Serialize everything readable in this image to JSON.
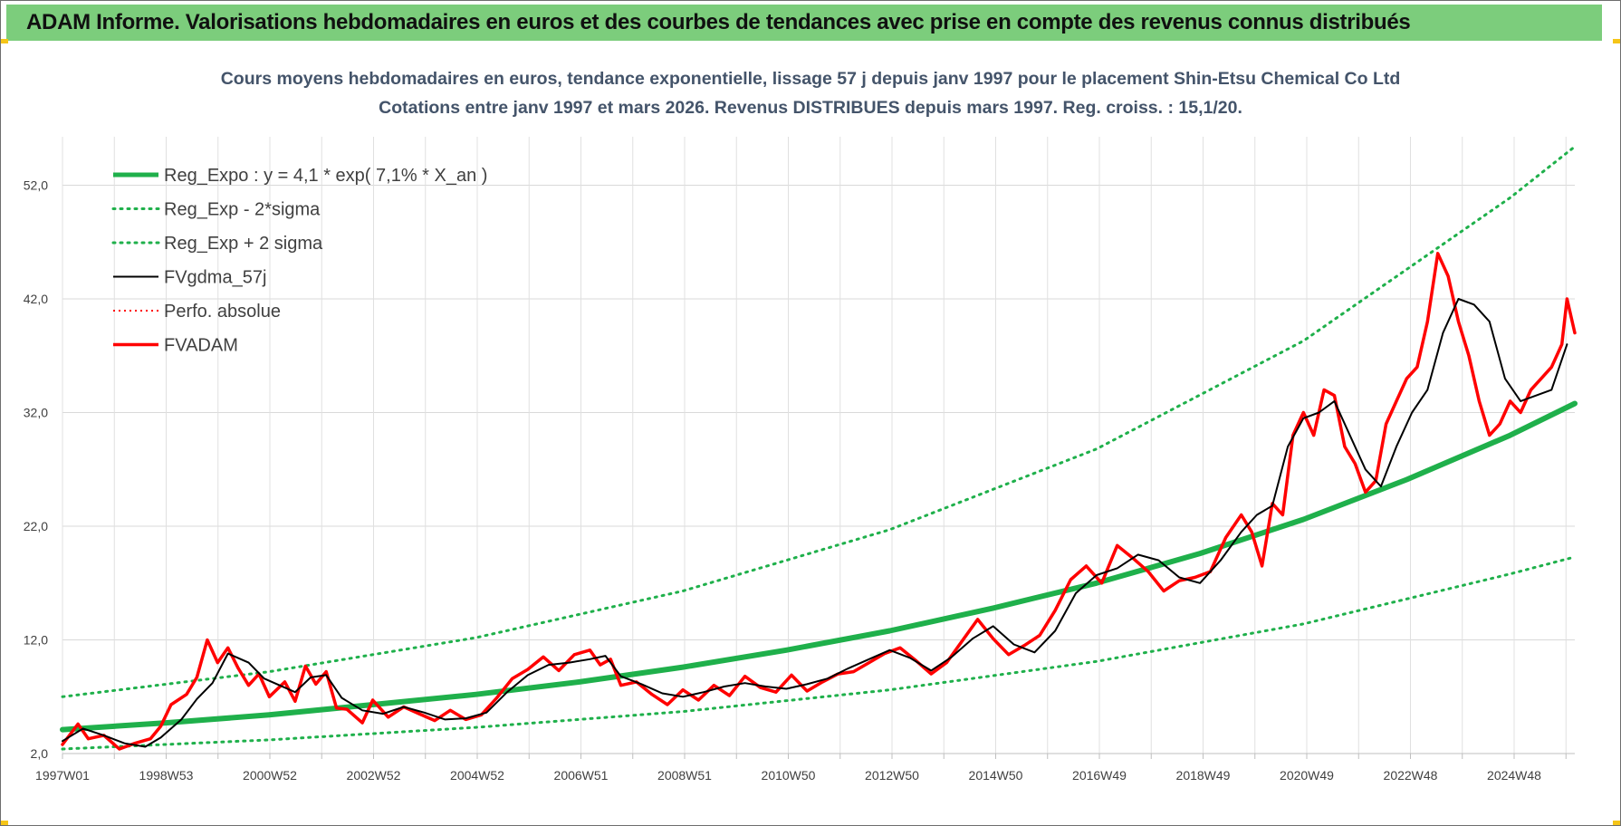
{
  "banner": {
    "title": "ADAM Informe. Valorisations hebdomadaires en euros et des courbes de tendances avec prise en compte des revenus connus distribués"
  },
  "colors": {
    "banner": "#7ccd7c",
    "trend_green": "#1fb04b",
    "fvadam_red": "#ff0000",
    "fvgdma_black": "#000000",
    "title_blue_gray": "#44546a"
  },
  "chart_data": {
    "type": "line",
    "title": "Cours moyens hebdomadaires en euros, tendance exponentielle, lissage 57 j depuis janv 1997 pour le placement Shin-Etsu Chemical Co Ltd",
    "subtitle": "Cotations entre janv 1997 et mars 2026. Revenus DISTRIBUES depuis mars 1997. Reg. croiss. : 15,1/20.",
    "xlabel": "",
    "ylabel": "",
    "x_tick_labels": [
      "1997W01",
      "1998W53",
      "2000W52",
      "2002W52",
      "2004W52",
      "2006W51",
      "2008W51",
      "2010W50",
      "2012W50",
      "2014W50",
      "2016W49",
      "2018W49",
      "2020W49",
      "2022W48",
      "2024W48"
    ],
    "y_tick_labels": [
      "2,0",
      "12,0",
      "22,0",
      "32,0",
      "42,0",
      "52,0"
    ],
    "ylim": [
      2,
      60
    ],
    "xlim": [
      1997.0,
      2026.25
    ],
    "grid": true,
    "legend_position": "top-left",
    "series": [
      {
        "name": "Reg_Expo : y = 4,1 * exp( 7,1% *  X_an )",
        "style": "solid-thick",
        "color": "#1fb04b",
        "x": [
          1997.0,
          1999.0,
          2001.0,
          2003.0,
          2005.0,
          2007.0,
          2009.0,
          2011.0,
          2013.0,
          2015.0,
          2017.0,
          2019.0,
          2021.0,
          2023.0,
          2025.0,
          2026.25
        ],
        "y": [
          4.1,
          4.7,
          5.4,
          6.3,
          7.2,
          8.3,
          9.6,
          11.1,
          12.8,
          14.8,
          17.0,
          19.6,
          22.6,
          26.1,
          30.0,
          32.8
        ]
      },
      {
        "name": "Reg_Exp - 2*sigma",
        "style": "dotted",
        "color": "#1fb04b",
        "x": [
          1997.0,
          2001.0,
          2005.0,
          2009.0,
          2013.0,
          2017.0,
          2021.0,
          2025.0,
          2026.25
        ],
        "y": [
          2.4,
          3.2,
          4.3,
          5.7,
          7.6,
          10.1,
          13.4,
          17.8,
          19.3
        ]
      },
      {
        "name": "Reg_Exp + 2 sigma",
        "style": "dotted",
        "color": "#1fb04b",
        "x": [
          1997.0,
          2001.0,
          2005.0,
          2009.0,
          2013.0,
          2017.0,
          2021.0,
          2025.0,
          2026.25
        ],
        "y": [
          7.0,
          9.2,
          12.2,
          16.3,
          21.7,
          28.8,
          38.3,
          50.9,
          55.4
        ]
      },
      {
        "name": "FVgdma_57j",
        "style": "solid-thin",
        "color": "#000000",
        "x": [
          1997.0,
          1997.4,
          1997.8,
          1998.2,
          1998.6,
          1998.9,
          1999.3,
          1999.6,
          1999.9,
          2000.2,
          2000.6,
          2000.9,
          2001.2,
          2001.5,
          2001.8,
          2002.1,
          2002.4,
          2002.8,
          2003.2,
          2003.6,
          2004.0,
          2004.4,
          2004.8,
          2005.2,
          2005.6,
          2006.0,
          2006.4,
          2006.8,
          2007.2,
          2007.5,
          2007.8,
          2008.2,
          2008.6,
          2009.0,
          2009.4,
          2009.8,
          2010.2,
          2010.6,
          2011.0,
          2011.4,
          2011.8,
          2012.2,
          2012.6,
          2013.0,
          2013.4,
          2013.8,
          2014.2,
          2014.6,
          2015.0,
          2015.4,
          2015.8,
          2016.2,
          2016.6,
          2017.0,
          2017.4,
          2017.8,
          2018.2,
          2018.6,
          2019.0,
          2019.4,
          2019.8,
          2020.1,
          2020.4,
          2020.7,
          2021.0,
          2021.3,
          2021.6,
          2021.9,
          2022.2,
          2022.5,
          2022.8,
          2023.1,
          2023.4,
          2023.7,
          2024.0,
          2024.3,
          2024.6,
          2024.9,
          2025.2,
          2025.5,
          2025.8,
          2026.1
        ],
        "y": [
          3.1,
          4.2,
          3.6,
          2.9,
          2.6,
          3.4,
          5.0,
          6.8,
          8.2,
          10.8,
          10.0,
          8.6,
          8.0,
          7.4,
          8.7,
          8.9,
          6.9,
          5.8,
          5.5,
          6.1,
          5.6,
          5.0,
          5.1,
          5.6,
          7.4,
          8.9,
          9.8,
          10.0,
          10.3,
          10.6,
          8.8,
          8.1,
          7.3,
          7.0,
          7.4,
          7.9,
          8.2,
          7.9,
          7.7,
          8.1,
          8.6,
          9.5,
          10.3,
          11.1,
          10.4,
          9.3,
          10.5,
          12.1,
          13.2,
          11.6,
          10.9,
          12.8,
          16.1,
          17.7,
          18.3,
          19.5,
          19.0,
          17.5,
          17.0,
          19.0,
          21.5,
          23.0,
          23.8,
          29.0,
          31.5,
          32.0,
          33.0,
          30.0,
          27.0,
          25.5,
          29.0,
          32.0,
          34.0,
          39.0,
          42.0,
          41.5,
          40.0,
          35.0,
          33.0,
          33.5,
          34.0,
          38.0
        ]
      },
      {
        "name": "Perfo. absolue",
        "style": "dotted-thin",
        "color": "#ff0000",
        "x": [],
        "y": []
      },
      {
        "name": "FVADAM",
        "style": "solid",
        "color": "#ff0000",
        "x": [
          1997.0,
          1997.3,
          1997.5,
          1997.8,
          1998.1,
          1998.4,
          1998.7,
          1998.9,
          1999.1,
          1999.4,
          1999.6,
          1999.8,
          2000.0,
          2000.2,
          2000.4,
          2000.6,
          2000.8,
          2001.0,
          2001.3,
          2001.5,
          2001.7,
          2001.9,
          2002.1,
          2002.3,
          2002.5,
          2002.8,
          2003.0,
          2003.3,
          2003.6,
          2003.9,
          2004.2,
          2004.5,
          2004.8,
          2005.1,
          2005.4,
          2005.7,
          2006.0,
          2006.3,
          2006.6,
          2006.9,
          2007.2,
          2007.4,
          2007.6,
          2007.8,
          2008.1,
          2008.4,
          2008.7,
          2009.0,
          2009.3,
          2009.6,
          2009.9,
          2010.2,
          2010.5,
          2010.8,
          2011.1,
          2011.4,
          2011.7,
          2012.0,
          2012.3,
          2012.6,
          2012.9,
          2013.2,
          2013.5,
          2013.8,
          2014.1,
          2014.4,
          2014.7,
          2015.0,
          2015.3,
          2015.6,
          2015.9,
          2016.2,
          2016.5,
          2016.8,
          2017.1,
          2017.4,
          2017.7,
          2018.0,
          2018.3,
          2018.6,
          2018.9,
          2019.2,
          2019.5,
          2019.8,
          2020.0,
          2020.2,
          2020.4,
          2020.6,
          2020.8,
          2021.0,
          2021.2,
          2021.4,
          2021.6,
          2021.8,
          2022.0,
          2022.2,
          2022.4,
          2022.6,
          2022.8,
          2023.0,
          2023.2,
          2023.4,
          2023.6,
          2023.8,
          2024.0,
          2024.2,
          2024.4,
          2024.6,
          2024.8,
          2025.0,
          2025.2,
          2025.4,
          2025.6,
          2025.8,
          2026.0,
          2026.1,
          2026.25
        ],
        "y": [
          2.8,
          4.6,
          3.3,
          3.6,
          2.4,
          2.9,
          3.3,
          4.4,
          6.3,
          7.2,
          8.7,
          12.0,
          10.0,
          11.3,
          9.5,
          8.0,
          9.0,
          7.0,
          8.3,
          6.6,
          9.7,
          8.1,
          9.2,
          6.0,
          5.9,
          4.7,
          6.7,
          5.2,
          6.1,
          5.5,
          4.9,
          5.8,
          5.0,
          5.4,
          6.9,
          8.6,
          9.4,
          10.5,
          9.3,
          10.7,
          11.1,
          9.8,
          10.3,
          8.0,
          8.3,
          7.2,
          6.3,
          7.6,
          6.7,
          8.0,
          7.1,
          8.8,
          7.8,
          7.4,
          8.9,
          7.5,
          8.3,
          9.0,
          9.2,
          10.0,
          10.8,
          11.3,
          10.2,
          9.0,
          10.0,
          11.9,
          13.8,
          12.1,
          10.7,
          11.5,
          12.4,
          14.6,
          17.3,
          18.5,
          17.0,
          20.3,
          19.2,
          18.0,
          16.3,
          17.2,
          17.5,
          18.0,
          21.0,
          23.0,
          21.5,
          18.5,
          24.0,
          23.0,
          30.0,
          32.0,
          30.0,
          34.0,
          33.5,
          29.0,
          27.5,
          25.0,
          26.0,
          31.0,
          33.0,
          35.0,
          36.0,
          40.0,
          46.0,
          44.0,
          40.0,
          37.0,
          33.0,
          30.0,
          31.0,
          33.0,
          32.0,
          34.0,
          35.0,
          36.0,
          38.0,
          42.0,
          39.0
        ]
      }
    ]
  }
}
